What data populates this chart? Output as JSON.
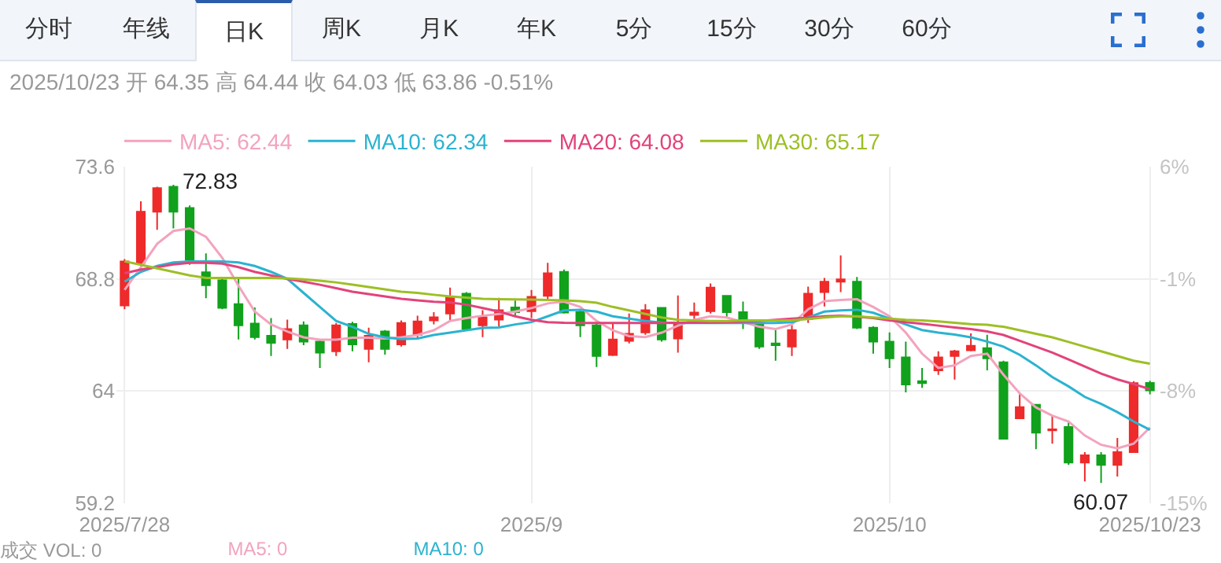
{
  "chart_data": {
    "type": "candlestick",
    "subtitle": "2025/10/23 开 64.35 高 64.44 收 64.03 低 63.86 -0.51%",
    "categories": [
      "2025/7/28",
      null,
      null,
      null,
      null,
      null,
      null,
      null,
      null,
      null,
      null,
      null,
      null,
      null,
      null,
      null,
      null,
      null,
      null,
      null,
      null,
      null,
      null,
      null,
      null,
      "2025/9",
      null,
      null,
      null,
      null,
      null,
      null,
      null,
      null,
      null,
      null,
      null,
      null,
      null,
      null,
      null,
      null,
      null,
      null,
      null,
      null,
      null,
      "2025/10",
      null,
      null,
      null,
      null,
      null,
      null,
      null,
      null,
      null,
      null,
      null,
      null,
      null,
      null,
      null,
      "2025/10/23"
    ],
    "ohlc": [
      [
        67.66,
        69.65,
        67.5,
        69.55
      ],
      [
        69.49,
        72.12,
        69.14,
        71.67
      ],
      [
        71.67,
        72.74,
        70.9,
        72.68
      ],
      [
        72.74,
        72.83,
        70.96,
        71.67
      ],
      [
        71.83,
        71.94,
        69.4,
        69.61
      ],
      [
        69.08,
        69.89,
        67.97,
        68.53
      ],
      [
        68.74,
        68.84,
        67.5,
        67.56
      ],
      [
        67.72,
        68.84,
        66.21,
        66.81
      ],
      [
        66.89,
        67.58,
        66.21,
        66.31
      ],
      [
        66.37,
        67.12,
        65.5,
        66.06
      ],
      [
        66.21,
        67.06,
        65.8,
        66.65
      ],
      [
        66.81,
        66.98,
        65.96,
        66.11
      ],
      [
        66.11,
        66.21,
        64.99,
        65.64
      ],
      [
        65.7,
        66.91,
        65.5,
        66.81
      ],
      [
        66.87,
        66.96,
        65.7,
        66.0
      ],
      [
        65.8,
        66.71,
        65.23,
        66.37
      ],
      [
        66.55,
        66.61,
        65.56,
        65.8
      ],
      [
        66.0,
        67.02,
        65.9,
        66.91
      ],
      [
        66.41,
        67.22,
        66.21,
        66.98
      ],
      [
        67.02,
        67.38,
        66.85,
        67.16
      ],
      [
        67.32,
        68.43,
        67.02,
        67.99
      ],
      [
        68.17,
        68.23,
        66.61,
        66.67
      ],
      [
        66.81,
        67.46,
        66.31,
        67.16
      ],
      [
        67.06,
        67.99,
        66.77,
        67.46
      ],
      [
        67.58,
        67.87,
        67.22,
        67.38
      ],
      [
        67.42,
        68.33,
        67.12,
        68.03
      ],
      [
        68.07,
        69.49,
        67.93,
        69.04
      ],
      [
        69.1,
        69.2,
        67.32,
        67.36
      ],
      [
        67.38,
        67.46,
        66.31,
        66.81
      ],
      [
        66.81,
        66.91,
        65.03,
        65.5
      ],
      [
        65.54,
        66.91,
        65.5,
        66.21
      ],
      [
        66.15,
        67.32,
        66.04,
        66.45
      ],
      [
        66.51,
        67.72,
        66.41,
        67.46
      ],
      [
        67.56,
        67.56,
        66.11,
        66.21
      ],
      [
        66.25,
        68.09,
        65.64,
        66.85
      ],
      [
        67.26,
        67.79,
        67.02,
        67.36
      ],
      [
        67.42,
        68.6,
        67.32,
        68.43
      ],
      [
        68.07,
        68.07,
        67.12,
        67.38
      ],
      [
        67.38,
        67.83,
        66.65,
        66.91
      ],
      [
        66.85,
        66.85,
        65.8,
        65.9
      ],
      [
        66.04,
        66.61,
        65.3,
        65.96
      ],
      [
        65.9,
        66.81,
        65.5,
        66.61
      ],
      [
        67.08,
        68.47,
        66.91,
        68.17
      ],
      [
        68.23,
        68.84,
        67.62,
        68.68
      ],
      [
        68.68,
        69.81,
        68.23,
        68.78
      ],
      [
        68.68,
        68.88,
        66.65,
        66.71
      ],
      [
        66.71,
        66.77,
        65.6,
        66.11
      ],
      [
        66.11,
        66.51,
        64.99,
        65.4
      ],
      [
        65.44,
        66.11,
        63.94,
        64.28
      ],
      [
        64.42,
        64.99,
        64.14,
        64.34
      ],
      [
        64.89,
        65.7,
        64.69,
        65.44
      ],
      [
        65.5,
        65.76,
        64.49,
        65.7
      ],
      [
        65.74,
        66.47,
        65.7,
        65.94
      ],
      [
        65.84,
        66.41,
        64.89,
        65.4
      ],
      [
        65.23,
        65.3,
        61.96,
        61.96
      ],
      [
        62.83,
        63.88,
        62.81,
        63.31
      ],
      [
        63.41,
        63.41,
        61.51,
        62.22
      ],
      [
        62.32,
        62.97,
        61.75,
        62.36
      ],
      [
        62.46,
        62.66,
        60.84,
        60.94
      ],
      [
        60.94,
        61.39,
        60.13,
        61.25
      ],
      [
        61.25,
        61.39,
        60.07,
        60.84
      ],
      [
        60.84,
        61.99,
        60.34,
        61.39
      ],
      [
        61.39,
        64.42,
        61.35,
        64.34
      ],
      [
        64.35,
        64.44,
        63.86,
        64.03
      ]
    ],
    "colors": [
      "#ee2a2a",
      "#ee2a2a",
      "#ee2a2a",
      "#11a11c",
      "#11a11c",
      "#11a11c",
      "#11a11c",
      "#11a11c",
      "#11a11c",
      "#11a11c",
      "#ee2a2a",
      "#11a11c",
      "#11a11c",
      "#ee2a2a",
      "#11a11c",
      "#ee2a2a",
      "#11a11c",
      "#ee2a2a",
      "#ee2a2a",
      "#ee2a2a",
      "#ee2a2a",
      "#11a11c",
      "#ee2a2a",
      "#ee2a2a",
      "#11a11c",
      "#ee2a2a",
      "#ee2a2a",
      "#11a11c",
      "#11a11c",
      "#11a11c",
      "#ee2a2a",
      "#ee2a2a",
      "#ee2a2a",
      "#11a11c",
      "#ee2a2a",
      "#ee2a2a",
      "#ee2a2a",
      "#11a11c",
      "#11a11c",
      "#11a11c",
      "#11a11c",
      "#ee2a2a",
      "#ee2a2a",
      "#ee2a2a",
      "#ee2a2a",
      "#11a11c",
      "#11a11c",
      "#11a11c",
      "#11a11c",
      "#11a11c",
      "#ee2a2a",
      "#ee2a2a",
      "#ee2a2a",
      "#11a11c",
      "#11a11c",
      "#ee2a2a",
      "#11a11c",
      "#ee2a2a",
      "#11a11c",
      "#ee2a2a",
      "#11a11c",
      "#ee2a2a",
      "#ee2a2a",
      "#11a11c"
    ],
    "series": [
      {
        "type": "line",
        "name": "MA5: 62.44",
        "color": "#f3a3bd",
        "values": [
          68.33,
          69.3,
          70.3,
          70.85,
          70.96,
          70.6,
          69.7,
          68.5,
          67.4,
          66.85,
          66.55,
          66.3,
          66.2,
          66.2,
          66.28,
          66.28,
          66.25,
          66.3,
          66.4,
          66.6,
          67.0,
          67.12,
          67.22,
          67.3,
          67.4,
          67.55,
          67.75,
          67.83,
          67.6,
          67.0,
          66.6,
          66.35,
          66.31,
          66.5,
          66.8,
          67.05,
          67.2,
          67.15,
          66.95,
          66.75,
          66.65,
          66.85,
          67.5,
          67.85,
          67.9,
          67.93,
          67.6,
          67.2,
          66.5,
          65.6,
          64.99,
          65.1,
          65.5,
          65.6,
          64.7,
          63.9,
          63.3,
          62.95,
          62.7,
          62.1,
          61.7,
          61.55,
          61.75,
          62.44
        ]
      },
      {
        "type": "line",
        "name": "MA10: 62.34",
        "color": "#2bb3d0",
        "values": [
          68.68,
          69.1,
          69.35,
          69.5,
          69.55,
          69.55,
          69.55,
          69.5,
          69.35,
          69.1,
          68.8,
          68.2,
          67.6,
          67.0,
          66.75,
          66.45,
          66.3,
          66.22,
          66.25,
          66.4,
          66.5,
          66.6,
          66.7,
          66.72,
          66.85,
          66.95,
          67.2,
          67.45,
          67.48,
          67.4,
          67.2,
          67.1,
          67.0,
          66.93,
          66.91,
          66.91,
          66.91,
          66.91,
          66.91,
          66.91,
          66.91,
          66.95,
          67.15,
          67.4,
          67.45,
          67.48,
          67.35,
          67.1,
          66.85,
          66.61,
          66.5,
          66.42,
          66.3,
          66.12,
          65.9,
          65.55,
          65.1,
          64.6,
          64.2,
          63.75,
          63.45,
          63.1,
          62.7,
          62.34
        ]
      },
      {
        "type": "line",
        "name": "MA20: 64.08",
        "color": "#e2437b",
        "values": [
          69.04,
          69.2,
          69.3,
          69.42,
          69.49,
          69.49,
          69.45,
          69.3,
          69.1,
          68.95,
          68.8,
          68.68,
          68.55,
          68.4,
          68.25,
          68.15,
          68.05,
          67.95,
          67.88,
          67.82,
          67.79,
          67.7,
          67.55,
          67.4,
          67.2,
          67.05,
          66.95,
          66.92,
          66.91,
          66.91,
          66.91,
          66.91,
          66.91,
          66.91,
          66.92,
          66.92,
          66.93,
          66.95,
          66.97,
          67.0,
          67.05,
          67.1,
          67.14,
          67.2,
          67.22,
          67.18,
          67.12,
          67.02,
          66.95,
          66.88,
          66.8,
          66.72,
          66.65,
          66.55,
          66.4,
          66.15,
          65.9,
          65.65,
          65.35,
          65.05,
          64.75,
          64.5,
          64.3,
          64.08
        ]
      },
      {
        "type": "line",
        "name": "MA30: 65.17",
        "color": "#9dbf26",
        "values": [
          69.55,
          69.4,
          69.25,
          69.1,
          68.95,
          68.84,
          68.84,
          68.84,
          68.84,
          68.84,
          68.82,
          68.78,
          68.72,
          68.65,
          68.55,
          68.45,
          68.35,
          68.25,
          68.2,
          68.12,
          68.05,
          68.0,
          67.95,
          67.93,
          67.92,
          67.91,
          67.9,
          67.88,
          67.85,
          67.78,
          67.6,
          67.45,
          67.3,
          67.15,
          67.05,
          67.02,
          67.0,
          67.0,
          67.02,
          67.02,
          67.02,
          67.03,
          67.08,
          67.15,
          67.2,
          67.2,
          67.15,
          67.1,
          67.05,
          67.02,
          66.98,
          66.92,
          66.86,
          66.84,
          66.75,
          66.6,
          66.45,
          66.3,
          66.1,
          65.9,
          65.7,
          65.5,
          65.3,
          65.17
        ]
      }
    ],
    "ylim": [
      59.2,
      73.6
    ],
    "yticks": [
      59.2,
      64,
      68.8,
      73.6
    ],
    "y2lim": [
      -15,
      6
    ],
    "y2ticks": [
      {
        "value": -15,
        "label": "-15%"
      },
      {
        "value": -8,
        "label": "-8%"
      },
      {
        "value": -1,
        "label": "-1%"
      },
      {
        "value": 6,
        "label": "6%"
      }
    ],
    "grid": true,
    "legend": "top left",
    "annotations": [
      "分时",
      "年线",
      "日K",
      "周K",
      "月K",
      "年K",
      "5分",
      "15分",
      "30分",
      "60分",
      "成交 VOL: 0",
      "MA5: 0",
      "MA10: 0",
      "72.83",
      "60.07"
    ]
  }
}
